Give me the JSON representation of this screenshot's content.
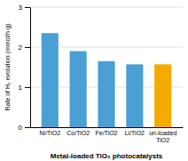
{
  "chart_data": {
    "type": "bar",
    "categories": [
      "Ni/TiO2",
      "Co/TiO2",
      "Fe/TiO2",
      "Li/TiO2",
      "un-loaded\nTiO2"
    ],
    "values": [
      2.35,
      1.9,
      1.65,
      1.57,
      1.57
    ],
    "colors": [
      "#4a9fd4",
      "#4a9fd4",
      "#4a9fd4",
      "#4a9fd4",
      "#f5aa00"
    ],
    "ylabel": "Rate of H₂ evolution (mmol/h·g)",
    "xlabel": "Metal-loaded TiO₂ photocatalysts",
    "ylim": [
      0,
      3
    ],
    "yticks": [
      0,
      1,
      2,
      3
    ],
    "grid": true
  }
}
